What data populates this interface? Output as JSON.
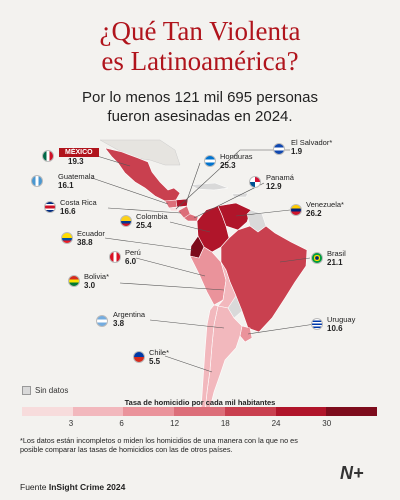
{
  "title_line1": "¿Qué Tan Violenta",
  "title_line2": "es Latinoamérica?",
  "subtitle_line1": "Por lo menos 121 mil 695 personas",
  "subtitle_line2": "fueron asesinadas en 2024.",
  "countries": [
    {
      "id": "mexico",
      "name": "MÉXICO",
      "value": "19.3",
      "rate": 19.3
    },
    {
      "id": "guatemala",
      "name": "Guatemala",
      "value": "16.1",
      "rate": 16.1
    },
    {
      "id": "el-salvador",
      "name": "El Salvador*",
      "value": "1.9",
      "rate": 1.9
    },
    {
      "id": "honduras",
      "name": "Honduras",
      "value": "25.3",
      "rate": 25.3
    },
    {
      "id": "panama",
      "name": "Panamá",
      "value": "12.9",
      "rate": 12.9
    },
    {
      "id": "costa-rica",
      "name": "Costa Rica",
      "value": "16.6",
      "rate": 16.6
    },
    {
      "id": "colombia",
      "name": "Colombia",
      "value": "25.4",
      "rate": 25.4
    },
    {
      "id": "venezuela",
      "name": "Venezuela*",
      "value": "26.2",
      "rate": 26.2
    },
    {
      "id": "ecuador",
      "name": "Ecuador",
      "value": "38.8",
      "rate": 38.8
    },
    {
      "id": "peru",
      "name": "Perú",
      "value": "6.0",
      "rate": 6.0
    },
    {
      "id": "brasil",
      "name": "Brasil",
      "value": "21.1",
      "rate": 21.1
    },
    {
      "id": "bolivia",
      "name": "Bolivia*",
      "value": "3.0",
      "rate": 3.0
    },
    {
      "id": "argentina",
      "name": "Argentina",
      "value": "3.8",
      "rate": 3.8
    },
    {
      "id": "uruguay",
      "name": "Uruguay",
      "value": "10.6",
      "rate": 10.6
    },
    {
      "id": "chile",
      "name": "Chile*",
      "value": "5.5",
      "rate": 5.5
    }
  ],
  "legend": {
    "no_data_label": "Sin datos",
    "title": "Tasa de homicidio por cada mil habitantes",
    "ticks": [
      "3",
      "6",
      "12",
      "18",
      "24",
      "30"
    ],
    "colors": [
      "#f7dcdc",
      "#f2b8bd",
      "#ea939b",
      "#dc6e79",
      "#c9404f",
      "#b0152a",
      "#7d0c1c"
    ],
    "no_data_color": "#d9d9d9"
  },
  "footnote": "*Los datos están incompletos o miden los homicidios de una manera con la que no es posible comparar las tasas de homicidios con las de otros países.",
  "source_prefix": "Fuente",
  "source_name": "InSight Crime 2024",
  "logo": "N+"
}
